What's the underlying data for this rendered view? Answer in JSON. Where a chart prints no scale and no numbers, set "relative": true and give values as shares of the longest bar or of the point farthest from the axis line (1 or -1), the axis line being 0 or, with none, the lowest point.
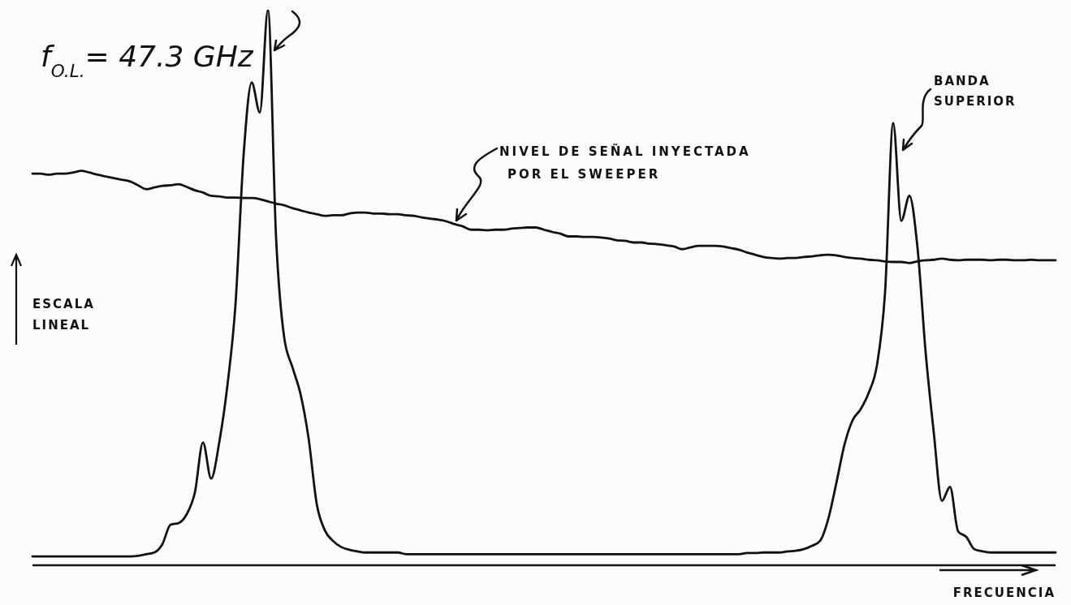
{
  "chart_data": {
    "type": "line",
    "relative": true,
    "xlabel": "FRECUENCIA",
    "ylabel": "ESCALA LINEAL",
    "categories": [
      null,
      null,
      null,
      null,
      null,
      null,
      null,
      null,
      null,
      null,
      null,
      null,
      null,
      null,
      null,
      null,
      null,
      null,
      null,
      null,
      null,
      null,
      null,
      null,
      null,
      null,
      null,
      null,
      null,
      null,
      null,
      null,
      null,
      null,
      null,
      null,
      null,
      null,
      null,
      null,
      null,
      null,
      null,
      null,
      null,
      null,
      null,
      null,
      null,
      null,
      null,
      null,
      null,
      null,
      null,
      null,
      null,
      null,
      null,
      null,
      null,
      null,
      null,
      null,
      null,
      null,
      null,
      null,
      null,
      null,
      null,
      null,
      null,
      null,
      null,
      null,
      null,
      null,
      null,
      null,
      null,
      null,
      null,
      null,
      null,
      null,
      null,
      null,
      null,
      null,
      null,
      null,
      null,
      null,
      null,
      null,
      null,
      null,
      null,
      null,
      null,
      null,
      null,
      null,
      null,
      null,
      null,
      null,
      null,
      null,
      null,
      null,
      null,
      null,
      null,
      null,
      null,
      null,
      null,
      null,
      null,
      null,
      null,
      null,
      null,
      null,
      null
    ],
    "series": [
      {
        "color": "#111111",
        "values": [
          0.016,
          0.016,
          0.016,
          0.016,
          0.016,
          0.016,
          0.016,
          0.016,
          0.016,
          0.016,
          0.016,
          0.016,
          0.016,
          0.017,
          0.02,
          0.023,
          0.038,
          0.073,
          0.076,
          0.092,
          0.131,
          0.221,
          0.156,
          0.221,
          0.323,
          0.469,
          0.738,
          0.869,
          0.815,
          1,
          0.59,
          0.41,
          0.357,
          0.309,
          0.229,
          0.111,
          0.063,
          0.044,
          0.033,
          0.028,
          0.025,
          0.023,
          0.023,
          0.023,
          0.023,
          0.023,
          0.02,
          0.02,
          0.02,
          0.02,
          0.02,
          0.02,
          0.02,
          0.02,
          0.02,
          0.02,
          0.02,
          0.02,
          0.02,
          0.02,
          0.02,
          0.02,
          0.02,
          0.02,
          0.02,
          0.02,
          0.02,
          0.02,
          0.02,
          0.02,
          0.02,
          0.02,
          0.02,
          0.02,
          0.02,
          0.02,
          0.02,
          0.02,
          0.02,
          0.02,
          0.02,
          0.02,
          0.02,
          0.02,
          0.02,
          0.02,
          0.02,
          0.02,
          0.022,
          0.022,
          0.023,
          0.023,
          0.023,
          0.025,
          0.026,
          0.029,
          0.035,
          0.044,
          0.083,
          0.148,
          0.217,
          0.261,
          0.281,
          0.311,
          0.36,
          0.491,
          0.796,
          0.62,
          0.665,
          0.571,
          0.383,
          0.239,
          0.116,
          0.141,
          0.061,
          0.051,
          0.029,
          0.025,
          0.023,
          0.023,
          0.023,
          0.023,
          0.023,
          0.023,
          0.023,
          0.023,
          0.023
        ]
      },
      {
        "name": "NIVEL DE SEÑAL INYECTADA POR EL SWEEPER",
        "color": "#111111",
        "values": [
          0.705,
          0.705,
          0.703,
          0.705,
          0.705,
          0.707,
          0.71,
          0.707,
          0.703,
          0.7,
          0.697,
          0.694,
          0.691,
          0.684,
          0.677,
          0.68,
          0.683,
          0.684,
          0.686,
          0.681,
          0.675,
          0.671,
          0.665,
          0.664,
          0.662,
          0.662,
          0.661,
          0.661,
          0.659,
          0.655,
          0.651,
          0.648,
          0.643,
          0.639,
          0.635,
          0.632,
          0.629,
          0.63,
          0.63,
          0.633,
          0.635,
          0.635,
          0.633,
          0.633,
          0.632,
          0.632,
          0.63,
          0.629,
          0.626,
          0.624,
          0.622,
          0.619,
          0.614,
          0.61,
          0.604,
          0.604,
          0.603,
          0.604,
          0.604,
          0.606,
          0.607,
          0.608,
          0.608,
          0.604,
          0.6,
          0.597,
          0.592,
          0.592,
          0.591,
          0.591,
          0.59,
          0.588,
          0.585,
          0.584,
          0.581,
          0.581,
          0.579,
          0.578,
          0.576,
          0.574,
          0.569,
          0.572,
          0.575,
          0.575,
          0.575,
          0.574,
          0.571,
          0.568,
          0.563,
          0.559,
          0.555,
          0.553,
          0.552,
          0.553,
          0.553,
          0.555,
          0.556,
          0.558,
          0.559,
          0.558,
          0.555,
          0.553,
          0.552,
          0.55,
          0.549,
          0.547,
          0.546,
          0.546,
          0.544,
          0.547,
          0.549,
          0.55,
          0.552,
          0.55,
          0.549,
          0.55,
          0.55,
          0.55,
          0.549,
          0.55,
          0.55,
          0.549,
          0.549,
          0.55,
          0.549,
          0.549,
          0.549
        ]
      }
    ],
    "annotations": [
      "f$_{O.L.}$= 47.3 GHz",
      "BANDA SUPERIOR"
    ]
  }
}
